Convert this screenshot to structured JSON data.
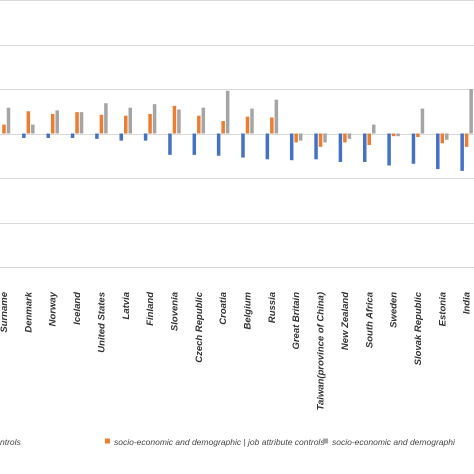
{
  "chart_data": {
    "type": "bar",
    "categories": [
      "Surname",
      "Denmark",
      "Norway",
      "Iceland",
      "United States",
      "Latvia",
      "Finland",
      "Slovenia",
      "Czech Republic",
      "Croatia",
      "Belgium",
      "Russia",
      "Great Britain",
      "Taiwan(province of China)",
      "New Zealand",
      "South Africa",
      "Sweden",
      "Slovak Republic",
      "Estonia",
      "India"
    ],
    "series": [
      {
        "name": "ntrols",
        "color": "#4472c4",
        "values": [
          0,
          -0.5,
          -0.5,
          -0.5,
          -0.6,
          -0.8,
          -0.8,
          -2.4,
          -2.4,
          -2.5,
          -2.7,
          -2.9,
          -3.0,
          -2.9,
          -3.2,
          -3.2,
          -3.6,
          -3.4,
          -4.0,
          -4.2
        ]
      },
      {
        "name": "socio-economic and demographic | job attribute controls",
        "color": "#ed7d31",
        "values": [
          1.0,
          2.5,
          2.2,
          2.4,
          2.1,
          2.0,
          2.2,
          3.1,
          2.0,
          1.4,
          1.9,
          1.8,
          -1.0,
          -1.5,
          -1.0,
          -1.3,
          -0.3,
          -0.4,
          -1.1,
          -1.5
        ]
      },
      {
        "name": "socio-economic and demographi",
        "color": "#a5a5a5",
        "values": [
          2.9,
          1.0,
          2.6,
          2.4,
          3.4,
          2.9,
          3.3,
          2.7,
          2.9,
          4.8,
          2.8,
          3.8,
          -0.8,
          -1.0,
          -0.6,
          1.0,
          -0.3,
          2.8,
          -0.7,
          5.0
        ]
      }
    ],
    "ylim": [
      -15,
      15
    ],
    "grid": true,
    "legend_position": "bottom"
  }
}
